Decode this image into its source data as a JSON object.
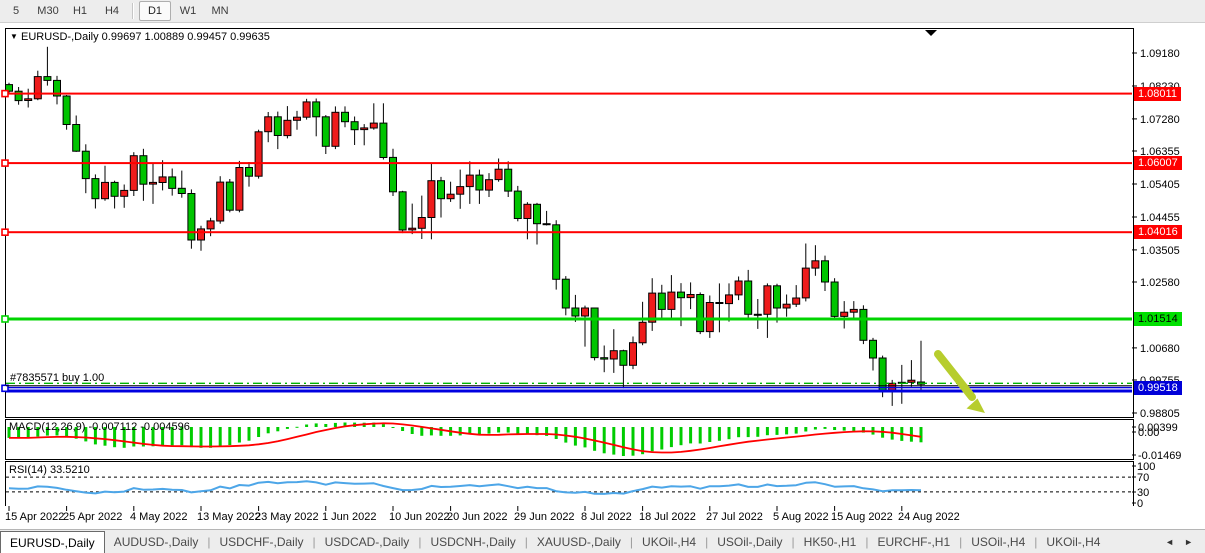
{
  "toolbar": {
    "timeframes": [
      {
        "label": "5",
        "active": false
      },
      {
        "label": "M30",
        "active": false
      },
      {
        "label": "H1",
        "active": false
      },
      {
        "label": "H4",
        "active": false
      },
      {
        "label": "sep",
        "sep": true
      },
      {
        "label": "D1",
        "active": true
      },
      {
        "label": "W1",
        "active": false
      },
      {
        "label": "MN",
        "active": false
      }
    ]
  },
  "chart": {
    "title_symbol": "EURUSD-,Daily",
    "title_ohlc": "0.99697 1.00889 0.99457 0.99635",
    "dropdown_icon": "▼"
  },
  "chart_data": {
    "type": "candlestick",
    "symbol": "EURUSD-,Daily",
    "colors": {
      "bull": "#ee1c1c",
      "bear": "#00c400",
      "wick": "#000000",
      "resistance": "#ff0000",
      "support_green": "#00d400",
      "support_blue": "#0000e0",
      "macd_hist": "#00cc00",
      "macd_signal": "#ff0000",
      "rsi_line": "#4da6e8",
      "arrow": "#b7cd2d"
    },
    "candles": [
      [
        1.0827,
        1.0832,
        1.08,
        1.0808
      ],
      [
        1.0808,
        1.082,
        1.0769,
        1.0781
      ],
      [
        1.0781,
        1.0815,
        1.0761,
        1.0786
      ],
      [
        1.0786,
        1.0867,
        1.0782,
        1.085
      ],
      [
        1.085,
        1.0936,
        1.0824,
        1.0839
      ],
      [
        1.0839,
        1.0852,
        1.077,
        1.0794
      ],
      [
        1.0794,
        1.0797,
        1.0697,
        1.0712
      ],
      [
        1.0712,
        1.0738,
        1.0633,
        1.0635
      ],
      [
        1.0635,
        1.0655,
        1.0514,
        1.0556
      ],
      [
        1.0556,
        1.0568,
        1.047,
        1.0498
      ],
      [
        1.0498,
        1.0593,
        1.0492,
        1.0545
      ],
      [
        1.0545,
        1.055,
        1.047,
        1.0505
      ],
      [
        1.0505,
        1.0539,
        1.0472,
        1.0522
      ],
      [
        1.0522,
        1.0632,
        1.0506,
        1.0622
      ],
      [
        1.0622,
        1.0642,
        1.0492,
        1.054
      ],
      [
        1.054,
        1.0599,
        1.0483,
        1.0545
      ],
      [
        1.0545,
        1.0609,
        1.0522,
        1.0561
      ],
      [
        1.0561,
        1.0585,
        1.0507,
        1.0528
      ],
      [
        1.0528,
        1.0579,
        1.0501,
        1.0513
      ],
      [
        1.0513,
        1.0525,
        1.0354,
        1.0379
      ],
      [
        1.0379,
        1.042,
        1.0348,
        1.0411
      ],
      [
        1.0411,
        1.0443,
        1.039,
        1.0434
      ],
      [
        1.0434,
        1.0563,
        1.0426,
        1.0546
      ],
      [
        1.0546,
        1.0555,
        1.0459,
        1.0465
      ],
      [
        1.0465,
        1.0607,
        1.0459,
        1.0588
      ],
      [
        1.0588,
        1.0604,
        1.0533,
        1.0563
      ],
      [
        1.0563,
        1.0697,
        1.0556,
        1.0691
      ],
      [
        1.0691,
        1.0748,
        1.0661,
        1.0734
      ],
      [
        1.0734,
        1.0749,
        1.0641,
        1.068
      ],
      [
        1.068,
        1.0765,
        1.0672,
        1.0724
      ],
      [
        1.0724,
        1.0751,
        1.0697,
        1.0733
      ],
      [
        1.0733,
        1.0786,
        1.0726,
        1.0777
      ],
      [
        1.0777,
        1.0787,
        1.0678,
        1.0734
      ],
      [
        1.0734,
        1.0739,
        1.0627,
        1.0649
      ],
      [
        1.0649,
        1.0764,
        1.0641,
        1.0747
      ],
      [
        1.0747,
        1.0764,
        1.0704,
        1.072
      ],
      [
        1.072,
        1.0735,
        1.0653,
        1.0697
      ],
      [
        1.0697,
        1.0713,
        1.0652,
        1.0702
      ],
      [
        1.0702,
        1.0773,
        1.0697,
        1.0716
      ],
      [
        1.0716,
        1.0773,
        1.0611,
        1.0617
      ],
      [
        1.0617,
        1.0642,
        1.0506,
        1.0518
      ],
      [
        1.0518,
        1.0521,
        1.0399,
        1.0408
      ],
      [
        1.0408,
        1.0484,
        1.0396,
        1.0413
      ],
      [
        1.0413,
        1.0507,
        1.0382,
        1.0444
      ],
      [
        1.0444,
        1.0601,
        1.0381,
        1.055
      ],
      [
        1.055,
        1.0561,
        1.0444,
        1.0498
      ],
      [
        1.0498,
        1.0547,
        1.0489,
        1.0511
      ],
      [
        1.0511,
        1.0582,
        1.0469,
        1.0533
      ],
      [
        1.0533,
        1.0606,
        1.0483,
        1.0566
      ],
      [
        1.0566,
        1.0582,
        1.0483,
        1.0523
      ],
      [
        1.0523,
        1.0572,
        1.0503,
        1.0553
      ],
      [
        1.0553,
        1.0614,
        1.0547,
        1.0583
      ],
      [
        1.0583,
        1.0606,
        1.0503,
        1.052
      ],
      [
        1.052,
        1.0535,
        1.0433,
        1.0441
      ],
      [
        1.0441,
        1.0488,
        1.0381,
        1.0482
      ],
      [
        1.0482,
        1.0486,
        1.0366,
        1.0426
      ],
      [
        1.0426,
        1.0463,
        1.0421,
        1.0423
      ],
      [
        1.0423,
        1.0436,
        1.0236,
        1.0266
      ],
      [
        1.0266,
        1.0275,
        1.0162,
        1.0183
      ],
      [
        1.0183,
        1.0221,
        1.0143,
        1.016
      ],
      [
        1.016,
        1.019,
        1.0072,
        1.0183
      ],
      [
        1.0183,
        1.0184,
        1.0032,
        1.004
      ],
      [
        1.004,
        1.0075,
        0.9998,
        1.0036
      ],
      [
        1.0036,
        1.0122,
        0.9996,
        1.006
      ],
      [
        1.006,
        1.0063,
        0.9952,
        1.0018
      ],
      [
        1.0018,
        1.0101,
        1.0007,
        1.0083
      ],
      [
        1.0083,
        1.0201,
        1.0076,
        1.0142
      ],
      [
        1.0142,
        1.0269,
        1.0117,
        1.0226
      ],
      [
        1.0226,
        1.025,
        1.0155,
        1.0179
      ],
      [
        1.0179,
        1.0278,
        1.0152,
        1.0229
      ],
      [
        1.0229,
        1.0255,
        1.0131,
        1.0213
      ],
      [
        1.0213,
        1.0257,
        1.018,
        1.0222
      ],
      [
        1.0222,
        1.0228,
        1.0108,
        1.0115
      ],
      [
        1.0115,
        1.0219,
        1.0097,
        1.0199
      ],
      [
        1.0199,
        1.0254,
        1.0113,
        1.0196
      ],
      [
        1.0196,
        1.0254,
        1.0144,
        1.0221
      ],
      [
        1.0221,
        1.0274,
        1.0206,
        1.0261
      ],
      [
        1.0261,
        1.0293,
        1.0155,
        1.0165
      ],
      [
        1.0165,
        1.0209,
        1.0123,
        1.0165
      ],
      [
        1.0165,
        1.0254,
        1.0097,
        1.0247
      ],
      [
        1.0247,
        1.0253,
        1.0141,
        1.0183
      ],
      [
        1.0183,
        1.0222,
        1.0158,
        1.0194
      ],
      [
        1.0194,
        1.0249,
        1.0186,
        1.0212
      ],
      [
        1.0212,
        1.0369,
        1.0202,
        1.0298
      ],
      [
        1.0298,
        1.0364,
        1.0276,
        1.0319
      ],
      [
        1.0319,
        1.0334,
        1.0232,
        1.0258
      ],
      [
        1.0258,
        1.0269,
        1.0154,
        1.0159
      ],
      [
        1.0159,
        1.0203,
        1.0124,
        1.0171
      ],
      [
        1.0171,
        1.0203,
        1.0147,
        1.0179
      ],
      [
        1.0179,
        1.0191,
        1.0079,
        1.009
      ],
      [
        1.009,
        1.0097,
        1.0003,
        1.0039
      ],
      [
        1.0039,
        1.0046,
        0.9926,
        0.9943
      ],
      [
        0.9943,
        0.9976,
        0.9901,
        0.9966
      ],
      [
        0.9966,
        1.0019,
        0.9907,
        0.9969
      ],
      [
        0.9969,
        1.0033,
        0.9956,
        0.9975
      ],
      [
        0.99697,
        1.00889,
        0.99457,
        0.99635
      ]
    ],
    "x_axis": {
      "ticks": [
        {
          "i": 0,
          "label": "15 Apr 2022"
        },
        {
          "i": 6,
          "label": "25 Apr 2022"
        },
        {
          "i": 13,
          "label": "4 May 2022"
        },
        {
          "i": 20,
          "label": "13 May 2022"
        },
        {
          "i": 26,
          "label": "23 May 2022"
        },
        {
          "i": 33,
          "label": "1 Jun 2022"
        },
        {
          "i": 40,
          "label": "10 Jun 2022"
        },
        {
          "i": 46,
          "label": "20 Jun 2022"
        },
        {
          "i": 53,
          "label": "29 Jun 2022"
        },
        {
          "i": 60,
          "label": "8 Jul 2022"
        },
        {
          "i": 66,
          "label": "18 Jul 2022"
        },
        {
          "i": 73,
          "label": "27 Jul 2022"
        },
        {
          "i": 80,
          "label": "5 Aug 2022"
        },
        {
          "i": 86,
          "label": "15 Aug 2022"
        },
        {
          "i": 93,
          "label": "24 Aug 2022"
        }
      ]
    },
    "y_axis": {
      "ticks": [
        "1.09180",
        "1.08230",
        "1.07280",
        "1.06355",
        "1.05405",
        "1.04455",
        "1.03505",
        "1.02580",
        "1.00680",
        "0.99755",
        "0.98805"
      ]
    },
    "hlines": [
      {
        "price": 1.08011,
        "label": "1.08011",
        "color": "#ff0000",
        "width": 2,
        "badge_bg": "#ff0000",
        "badge_fg": "#ffffff"
      },
      {
        "price": 1.06007,
        "label": "1.06007",
        "color": "#ff0000",
        "width": 2,
        "badge_bg": "#ff0000",
        "badge_fg": "#ffffff"
      },
      {
        "price": 1.04016,
        "label": "1.04016",
        "color": "#ff0000",
        "width": 2,
        "badge_bg": "#ff0000",
        "badge_fg": "#ffffff"
      },
      {
        "price": 1.01514,
        "label": "1.01514",
        "color": "#00d400",
        "width": 3,
        "badge_bg": "#00e000",
        "badge_fg": "#000000"
      },
      {
        "price": 0.99518,
        "label": "0.99518",
        "color": "#0000e0",
        "width": 3,
        "style": "double",
        "badge_bg": "#0000d8",
        "badge_fg": "#ffffff"
      }
    ],
    "bid_line": {
      "price": 0.9959,
      "color": "#000000"
    },
    "trade": {
      "label": "#7835571 buy 1.00",
      "price": 0.9966,
      "color": "#00b400",
      "style": "dashdot"
    },
    "macd": {
      "title": "MACD(12,26,9)",
      "values": "-0.007112 -0.004596",
      "axis_labels": [
        "0.00399",
        "0.00",
        "-0.01469"
      ],
      "params": {
        "fast": 12,
        "slow": 26,
        "signal": 9
      }
    },
    "rsi": {
      "title": "RSI(14)",
      "value": "33.5210",
      "levels": [
        "100",
        "70",
        "30",
        "0"
      ],
      "dashed_levels": [
        70,
        30
      ],
      "period": 14
    },
    "annotations": {
      "arrow_down_right": true,
      "chart_shift_marker": "▼"
    }
  },
  "tabs": {
    "items": [
      {
        "label": "EURUSD-,Daily",
        "active": true
      },
      {
        "label": "AUDUSD-,Daily",
        "active": false
      },
      {
        "label": "USDCHF-,Daily",
        "active": false
      },
      {
        "label": "USDCAD-,Daily",
        "active": false
      },
      {
        "label": "USDCNH-,Daily",
        "active": false
      },
      {
        "label": "XAUUSD-,Daily",
        "active": false
      },
      {
        "label": "UKOil-,H4",
        "active": false
      },
      {
        "label": "USOil-,Daily",
        "active": false
      },
      {
        "label": "HK50-,H1",
        "active": false
      },
      {
        "label": "EURCHF-,H1",
        "active": false
      },
      {
        "label": "USOil-,H4",
        "active": false
      },
      {
        "label": "UKOil-,H4",
        "active": false
      }
    ],
    "separator": "|",
    "scroll_left": "◄",
    "scroll_right": "►"
  }
}
